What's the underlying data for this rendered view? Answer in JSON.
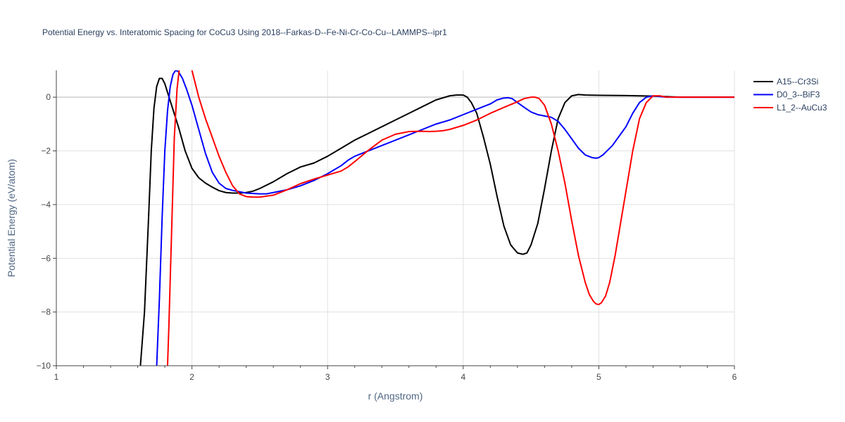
{
  "chart_data": {
    "type": "line",
    "title": "Potential Energy vs. Interatomic Spacing for CoCu3 Using 2018--Farkas-D--Fe-Ni-Cr-Co-Cu--LAMMPS--ipr1",
    "xlabel": "r (Angstrom)",
    "ylabel": "Potential Energy (eV/atom)",
    "xlim": [
      1,
      6
    ],
    "ylim": [
      -10,
      1
    ],
    "xticks": [
      1,
      2,
      3,
      4,
      5,
      6
    ],
    "xtick_labels": [
      "1",
      "2",
      "3",
      "4",
      "5",
      "6"
    ],
    "yticks": [
      -10,
      -8,
      -6,
      -4,
      -2,
      0
    ],
    "ytick_labels": [
      "−10",
      "−8",
      "−6",
      "−4",
      "−2",
      "0"
    ],
    "grid": true,
    "legend_position": "top-right",
    "series": [
      {
        "name": "A15--Cr3Si",
        "color": "#000000",
        "x": [
          1.62,
          1.65,
          1.68,
          1.7,
          1.72,
          1.74,
          1.76,
          1.78,
          1.8,
          1.85,
          1.9,
          1.95,
          2.0,
          2.05,
          2.1,
          2.15,
          2.2,
          2.25,
          2.3,
          2.35,
          2.4,
          2.45,
          2.5,
          2.6,
          2.7,
          2.8,
          2.9,
          3.0,
          3.1,
          3.2,
          3.3,
          3.4,
          3.5,
          3.6,
          3.7,
          3.8,
          3.9,
          3.95,
          4.0,
          4.03,
          4.06,
          4.1,
          4.15,
          4.2,
          4.25,
          4.3,
          4.35,
          4.4,
          4.44,
          4.47,
          4.5,
          4.55,
          4.6,
          4.65,
          4.7,
          4.75,
          4.8,
          4.85,
          4.9,
          5.0,
          5.2,
          5.4,
          5.5,
          5.6,
          5.8,
          6.0
        ],
        "y": [
          -10.0,
          -8.0,
          -4.5,
          -2.0,
          -0.4,
          0.4,
          0.7,
          0.7,
          0.5,
          -0.3,
          -1.1,
          -2.0,
          -2.65,
          -3.0,
          -3.2,
          -3.35,
          -3.48,
          -3.55,
          -3.57,
          -3.57,
          -3.55,
          -3.5,
          -3.4,
          -3.15,
          -2.85,
          -2.6,
          -2.45,
          -2.2,
          -1.9,
          -1.6,
          -1.35,
          -1.1,
          -0.85,
          -0.6,
          -0.35,
          -0.1,
          0.05,
          0.08,
          0.08,
          0.0,
          -0.2,
          -0.6,
          -1.5,
          -2.5,
          -3.7,
          -4.8,
          -5.5,
          -5.8,
          -5.85,
          -5.8,
          -5.5,
          -4.7,
          -3.4,
          -2.0,
          -0.8,
          -0.2,
          0.05,
          0.1,
          0.08,
          0.07,
          0.06,
          0.04,
          0.02,
          0.0,
          0.0,
          0.0
        ]
      },
      {
        "name": "D0_3--BiF3",
        "color": "#0000ff",
        "x": [
          1.74,
          1.76,
          1.78,
          1.8,
          1.82,
          1.84,
          1.86,
          1.88,
          1.9,
          1.93,
          1.96,
          2.0,
          2.05,
          2.1,
          2.15,
          2.2,
          2.25,
          2.3,
          2.4,
          2.5,
          2.55,
          2.6,
          2.7,
          2.8,
          2.9,
          3.0,
          3.1,
          3.15,
          3.2,
          3.3,
          3.4,
          3.5,
          3.6,
          3.7,
          3.8,
          3.9,
          4.0,
          4.1,
          4.2,
          4.25,
          4.3,
          4.33,
          4.36,
          4.4,
          4.45,
          4.5,
          4.55,
          4.6,
          4.65,
          4.7,
          4.75,
          4.8,
          4.85,
          4.9,
          4.95,
          4.98,
          5.0,
          5.03,
          5.06,
          5.1,
          5.15,
          5.2,
          5.25,
          5.3,
          5.35,
          5.4,
          5.5,
          5.6,
          5.8,
          6.0
        ],
        "y": [
          -10.0,
          -7.5,
          -4.5,
          -2.0,
          -0.5,
          0.4,
          0.85,
          1.0,
          0.95,
          0.7,
          0.3,
          -0.3,
          -1.2,
          -2.1,
          -2.8,
          -3.2,
          -3.4,
          -3.47,
          -3.57,
          -3.6,
          -3.6,
          -3.55,
          -3.45,
          -3.3,
          -3.1,
          -2.85,
          -2.55,
          -2.35,
          -2.2,
          -2.0,
          -1.8,
          -1.6,
          -1.4,
          -1.2,
          -1.0,
          -0.85,
          -0.65,
          -0.45,
          -0.25,
          -0.1,
          -0.03,
          -0.02,
          -0.05,
          -0.2,
          -0.38,
          -0.55,
          -0.65,
          -0.7,
          -0.75,
          -0.9,
          -1.2,
          -1.55,
          -1.9,
          -2.15,
          -2.25,
          -2.27,
          -2.25,
          -2.15,
          -2.0,
          -1.8,
          -1.45,
          -1.1,
          -0.6,
          -0.2,
          0.0,
          0.05,
          0.0,
          0.0,
          0.0,
          0.0
        ]
      },
      {
        "name": "L1_2--AuCu3",
        "color": "#ff0000",
        "x": [
          1.82,
          1.83,
          1.85,
          1.87,
          1.89,
          1.91,
          1.93,
          1.96,
          2.0,
          2.05,
          2.1,
          2.15,
          2.2,
          2.25,
          2.3,
          2.35,
          2.4,
          2.45,
          2.5,
          2.6,
          2.7,
          2.8,
          2.9,
          3.0,
          3.1,
          3.15,
          3.2,
          3.3,
          3.4,
          3.5,
          3.6,
          3.7,
          3.75,
          3.8,
          3.85,
          3.9,
          4.0,
          4.1,
          4.2,
          4.3,
          4.4,
          4.45,
          4.5,
          4.53,
          4.56,
          4.6,
          4.65,
          4.7,
          4.75,
          4.8,
          4.85,
          4.9,
          4.93,
          4.96,
          4.98,
          5.0,
          5.02,
          5.05,
          5.08,
          5.12,
          5.15,
          5.2,
          5.25,
          5.3,
          5.35,
          5.4,
          5.45,
          5.5,
          5.6,
          5.8,
          6.0
        ],
        "y": [
          -10.0,
          -8.5,
          -5.0,
          -1.5,
          0.3,
          1.2,
          1.6,
          1.6,
          1.0,
          0.0,
          -0.8,
          -1.5,
          -2.2,
          -2.8,
          -3.3,
          -3.6,
          -3.7,
          -3.72,
          -3.72,
          -3.65,
          -3.45,
          -3.22,
          -3.05,
          -2.9,
          -2.75,
          -2.6,
          -2.4,
          -1.98,
          -1.6,
          -1.38,
          -1.28,
          -1.27,
          -1.28,
          -1.27,
          -1.25,
          -1.2,
          -1.05,
          -0.85,
          -0.6,
          -0.38,
          -0.17,
          -0.05,
          0.0,
          0.0,
          -0.05,
          -0.3,
          -1.0,
          -2.0,
          -3.2,
          -4.6,
          -5.9,
          -6.9,
          -7.35,
          -7.6,
          -7.7,
          -7.72,
          -7.65,
          -7.4,
          -6.9,
          -5.9,
          -5.0,
          -3.5,
          -2.0,
          -0.8,
          -0.2,
          0.05,
          0.05,
          0.0,
          0.0,
          0.0,
          0.0
        ]
      }
    ]
  }
}
